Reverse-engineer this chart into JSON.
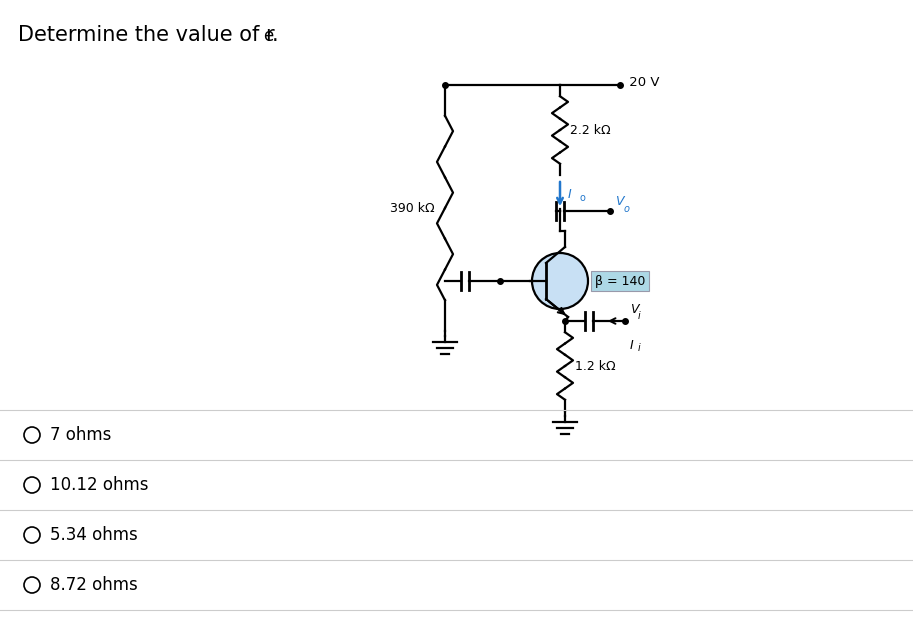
{
  "bg_color": "#ffffff",
  "title_main": "Determine the value of r",
  "title_sub": "e",
  "title_dot": ".",
  "title_fontsize": 15,
  "options": [
    "7 ohms",
    "10.12 ohms",
    "5.34 ohms",
    "8.72 ohms"
  ],
  "option_fontsize": 12,
  "circuit": {
    "vcc": " 20 V",
    "r1": "390 kΩ",
    "r2": "2.2 kΩ",
    "r3": "1.2 kΩ",
    "beta": "β = 140",
    "Io_label": "I",
    "Io_sub": "o",
    "Vo_label": "V",
    "Vo_sub": "o",
    "Vi_label": "V",
    "Vi_sub": "i",
    "Ii_label": "I",
    "Ii_sub": "i",
    "beta_box_color": "#add8e6",
    "io_arrow_color": "#2277cc",
    "vo_text_color": "#2277cc"
  }
}
